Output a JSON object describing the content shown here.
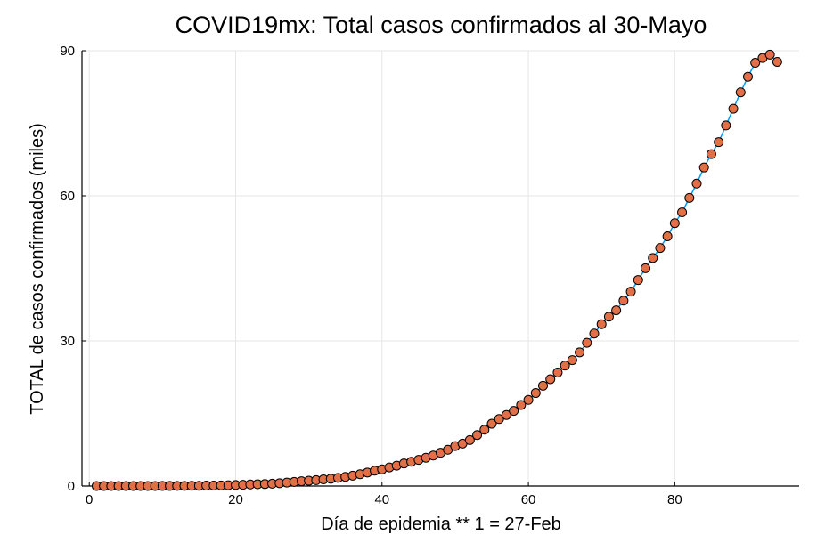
{
  "chart_data": {
    "type": "scatter",
    "title": "COVID19mx: Total casos confirmados al 30-Mayo",
    "xlabel": "Día de epidemia ** 1 = 27-Feb",
    "ylabel": "TOTAL de casos confirmados (miles)",
    "xlim": [
      -1,
      97
    ],
    "ylim": [
      0,
      90
    ],
    "xticks": [
      0,
      20,
      40,
      60,
      80
    ],
    "yticks": [
      0,
      30,
      60,
      90
    ],
    "grid": true,
    "legend": "none",
    "marker_color": "#e26f46",
    "line_color": "#009af9",
    "x": [
      1,
      2,
      3,
      4,
      5,
      6,
      7,
      8,
      9,
      10,
      11,
      12,
      13,
      14,
      15,
      16,
      17,
      18,
      19,
      20,
      21,
      22,
      23,
      24,
      25,
      26,
      27,
      28,
      29,
      30,
      31,
      32,
      33,
      34,
      35,
      36,
      37,
      38,
      39,
      40,
      41,
      42,
      43,
      44,
      45,
      46,
      47,
      48,
      49,
      50,
      51,
      52,
      53,
      54,
      55,
      56,
      57,
      58,
      59,
      60,
      61,
      62,
      63,
      64,
      65,
      66,
      67,
      68,
      69,
      70,
      71,
      72,
      73,
      74,
      75,
      76,
      77,
      78,
      79,
      80,
      81,
      82,
      83,
      84,
      85,
      86,
      87,
      88,
      89,
      90,
      91,
      92,
      93,
      94
    ],
    "y": [
      0.001,
      0.004,
      0.005,
      0.005,
      0.005,
      0.007,
      0.007,
      0.008,
      0.008,
      0.012,
      0.012,
      0.015,
      0.026,
      0.041,
      0.053,
      0.082,
      0.093,
      0.118,
      0.164,
      0.203,
      0.251,
      0.316,
      0.367,
      0.405,
      0.475,
      0.585,
      0.717,
      0.848,
      0.993,
      1.094,
      1.215,
      1.378,
      1.51,
      1.688,
      1.89,
      2.143,
      2.439,
      2.785,
      3.181,
      3.441,
      3.844,
      4.219,
      4.661,
      5.014,
      5.399,
      5.847,
      6.297,
      6.875,
      7.497,
      8.261,
      8.772,
      9.501,
      10.544,
      11.633,
      12.872,
      13.842,
      14.677,
      15.529,
      16.752,
      17.799,
      19.224,
      20.739,
      22.088,
      23.471,
      24.905,
      26.025,
      27.634,
      29.616,
      31.522,
      33.46,
      35.022,
      36.327,
      38.324,
      40.186,
      42.595,
      45.032,
      47.144,
      49.219,
      51.633,
      54.346,
      56.594,
      59.567,
      62.527,
      65.856,
      68.62,
      71.105,
      74.56,
      78.023,
      81.4,
      84.627,
      87.512,
      88.5,
      89.2,
      87.7
    ]
  }
}
